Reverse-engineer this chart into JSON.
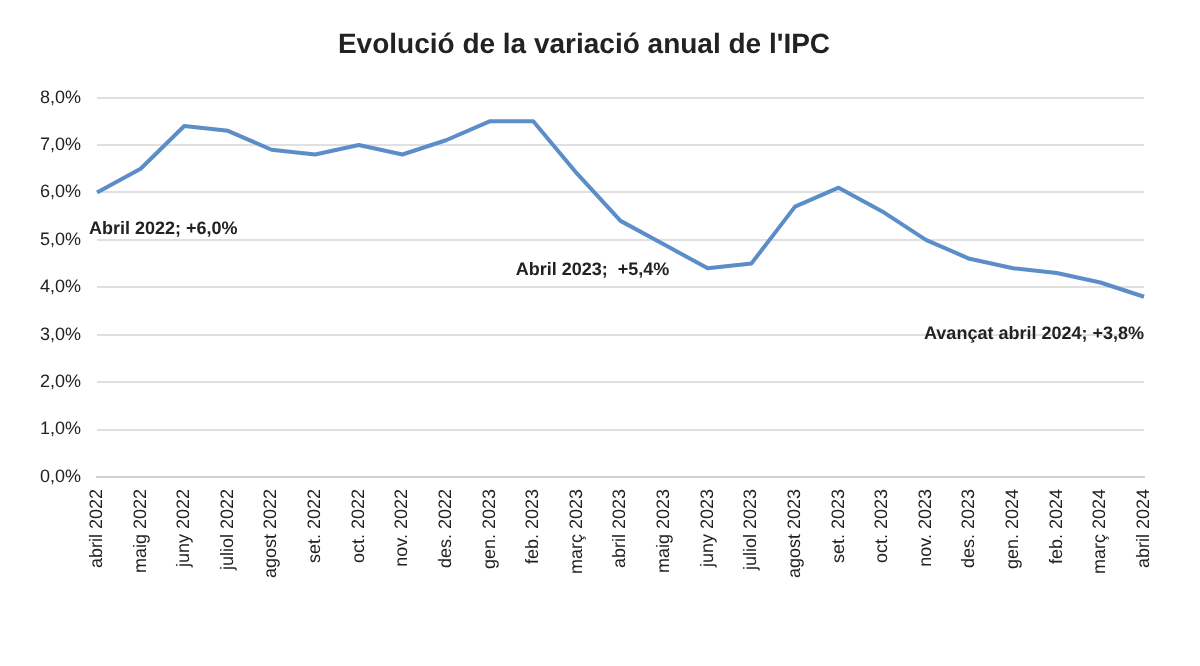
{
  "chart_data": {
    "type": "line",
    "title": "Evolució de la variació anual de l'IPC",
    "categories": [
      "abril 2022",
      "maig 2022",
      "juny 2022",
      "juliol 2022",
      "agost 2022",
      "set. 2022",
      "oct. 2022",
      "nov. 2022",
      "des. 2022",
      "gen. 2023",
      "feb. 2023",
      "març 2023",
      "abril 2023",
      "maig 2023",
      "juny 2023",
      "juliol 2023",
      "agost 2023",
      "set. 2023",
      "oct. 2023",
      "nov. 2023",
      "des. 2023",
      "gen. 2024",
      "feb. 2024",
      "març 2024",
      "abril 2024"
    ],
    "series": [
      {
        "color": "#5b8dc9",
        "values": [
          6.0,
          6.5,
          7.4,
          7.3,
          6.9,
          6.8,
          7.0,
          6.8,
          7.1,
          7.5,
          7.5,
          6.4,
          5.4,
          4.9,
          4.4,
          4.5,
          5.7,
          6.1,
          5.6,
          5.0,
          4.6,
          4.4,
          4.3,
          4.1,
          3.8
        ]
      }
    ],
    "ylim": [
      0,
      8
    ],
    "yticks": [
      {
        "value": 0,
        "label": "0,0%"
      },
      {
        "value": 1,
        "label": "1,0%"
      },
      {
        "value": 2,
        "label": "2,0%"
      },
      {
        "value": 3,
        "label": "3,0%"
      },
      {
        "value": 4,
        "label": "4,0%"
      },
      {
        "value": 5,
        "label": "5,0%"
      },
      {
        "value": 6,
        "label": "6,0%"
      },
      {
        "value": 7,
        "label": "7,0%"
      },
      {
        "value": 8,
        "label": "8,0%"
      }
    ],
    "grid": "y",
    "legend": false,
    "marker": "none",
    "line_style": "solid",
    "annotations": [
      {
        "text": "Abril 2022; +6,0%",
        "x": "abril 2022",
        "y": 6.0
      },
      {
        "text": "Abril 2023;  +5,4%",
        "x": "abril 2023",
        "y": 5.4
      },
      {
        "text": "Avançat abril 2024; +3,8%",
        "x": "abril 2024",
        "y": 3.8
      }
    ]
  }
}
